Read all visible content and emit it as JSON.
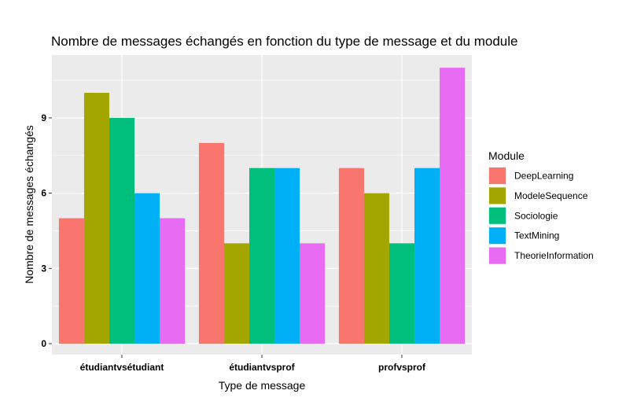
{
  "chart_data": {
    "type": "bar",
    "title": "Nombre de messages échangés en fonction du type de message et du module",
    "xlabel": "Type de message",
    "ylabel": "Nombre de messages échangés",
    "categories": [
      "étudiantvsétudiant",
      "étudiantvsprof",
      "profvsprof"
    ],
    "series": [
      {
        "name": "DeepLearning",
        "values": [
          5,
          8,
          7
        ],
        "color": "#F8766D"
      },
      {
        "name": "ModeleSequence",
        "values": [
          10,
          4,
          6
        ],
        "color": "#A3A500"
      },
      {
        "name": "Sociologie",
        "values": [
          9,
          7,
          4
        ],
        "color": "#00BF7D"
      },
      {
        "name": "TextMining",
        "values": [
          6,
          7,
          7
        ],
        "color": "#00B0F6"
      },
      {
        "name": "TheorieInformation",
        "values": [
          5,
          4,
          11
        ],
        "color": "#E76BF3"
      }
    ],
    "yticks": [
      0,
      3,
      6,
      9
    ],
    "ylim": [
      0,
      11.5
    ],
    "legend_title": "Module",
    "legend_position": "right",
    "grid": true,
    "panel_background": "#EBEBEB"
  }
}
